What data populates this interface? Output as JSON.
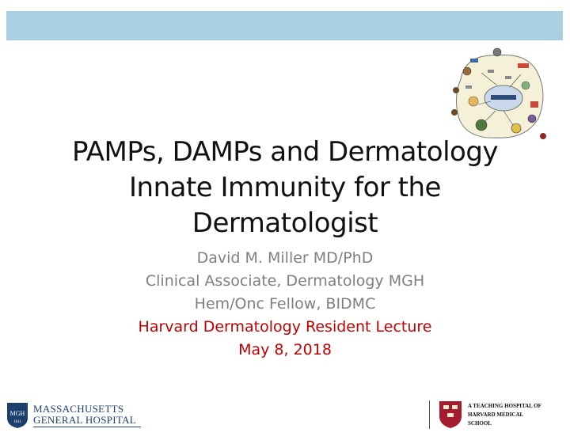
{
  "slide": {
    "title_lines": [
      "PAMPs, DAMPs and Dermatology",
      "Innate Immunity for the",
      "Dermatologist"
    ],
    "subtitle_lines": [
      "David M. Miller MD/PhD",
      "Clinical Associate, Dermatology MGH",
      "Hem/Onc Fellow, BIDMC"
    ],
    "event_lines": [
      "Harvard Dermatology Resident Lecture",
      "May 8, 2018"
    ]
  },
  "logos": {
    "mgh": {
      "line1": "MASSACHUSETTS",
      "line2": "GENERAL HOSPITAL",
      "shield_text": "MGH",
      "shield_year": "1811"
    },
    "hms": {
      "line1": "A TEACHING HOSPITAL OF",
      "line2": "HARVARD MEDICAL",
      "line3": "SCHOOL"
    }
  },
  "colors": {
    "band": "#a9cfe0",
    "accent_red": "#c00000",
    "subtitle_gray": "#7f7f7f",
    "mgh_blue": "#1c3f6e",
    "harvard_crimson": "#a51c30"
  },
  "icons": {
    "cell_diagram": "innate-immunity-cell-diagram-icon",
    "mgh_shield": "mgh-shield-icon",
    "hms_shield": "harvard-shield-icon"
  }
}
